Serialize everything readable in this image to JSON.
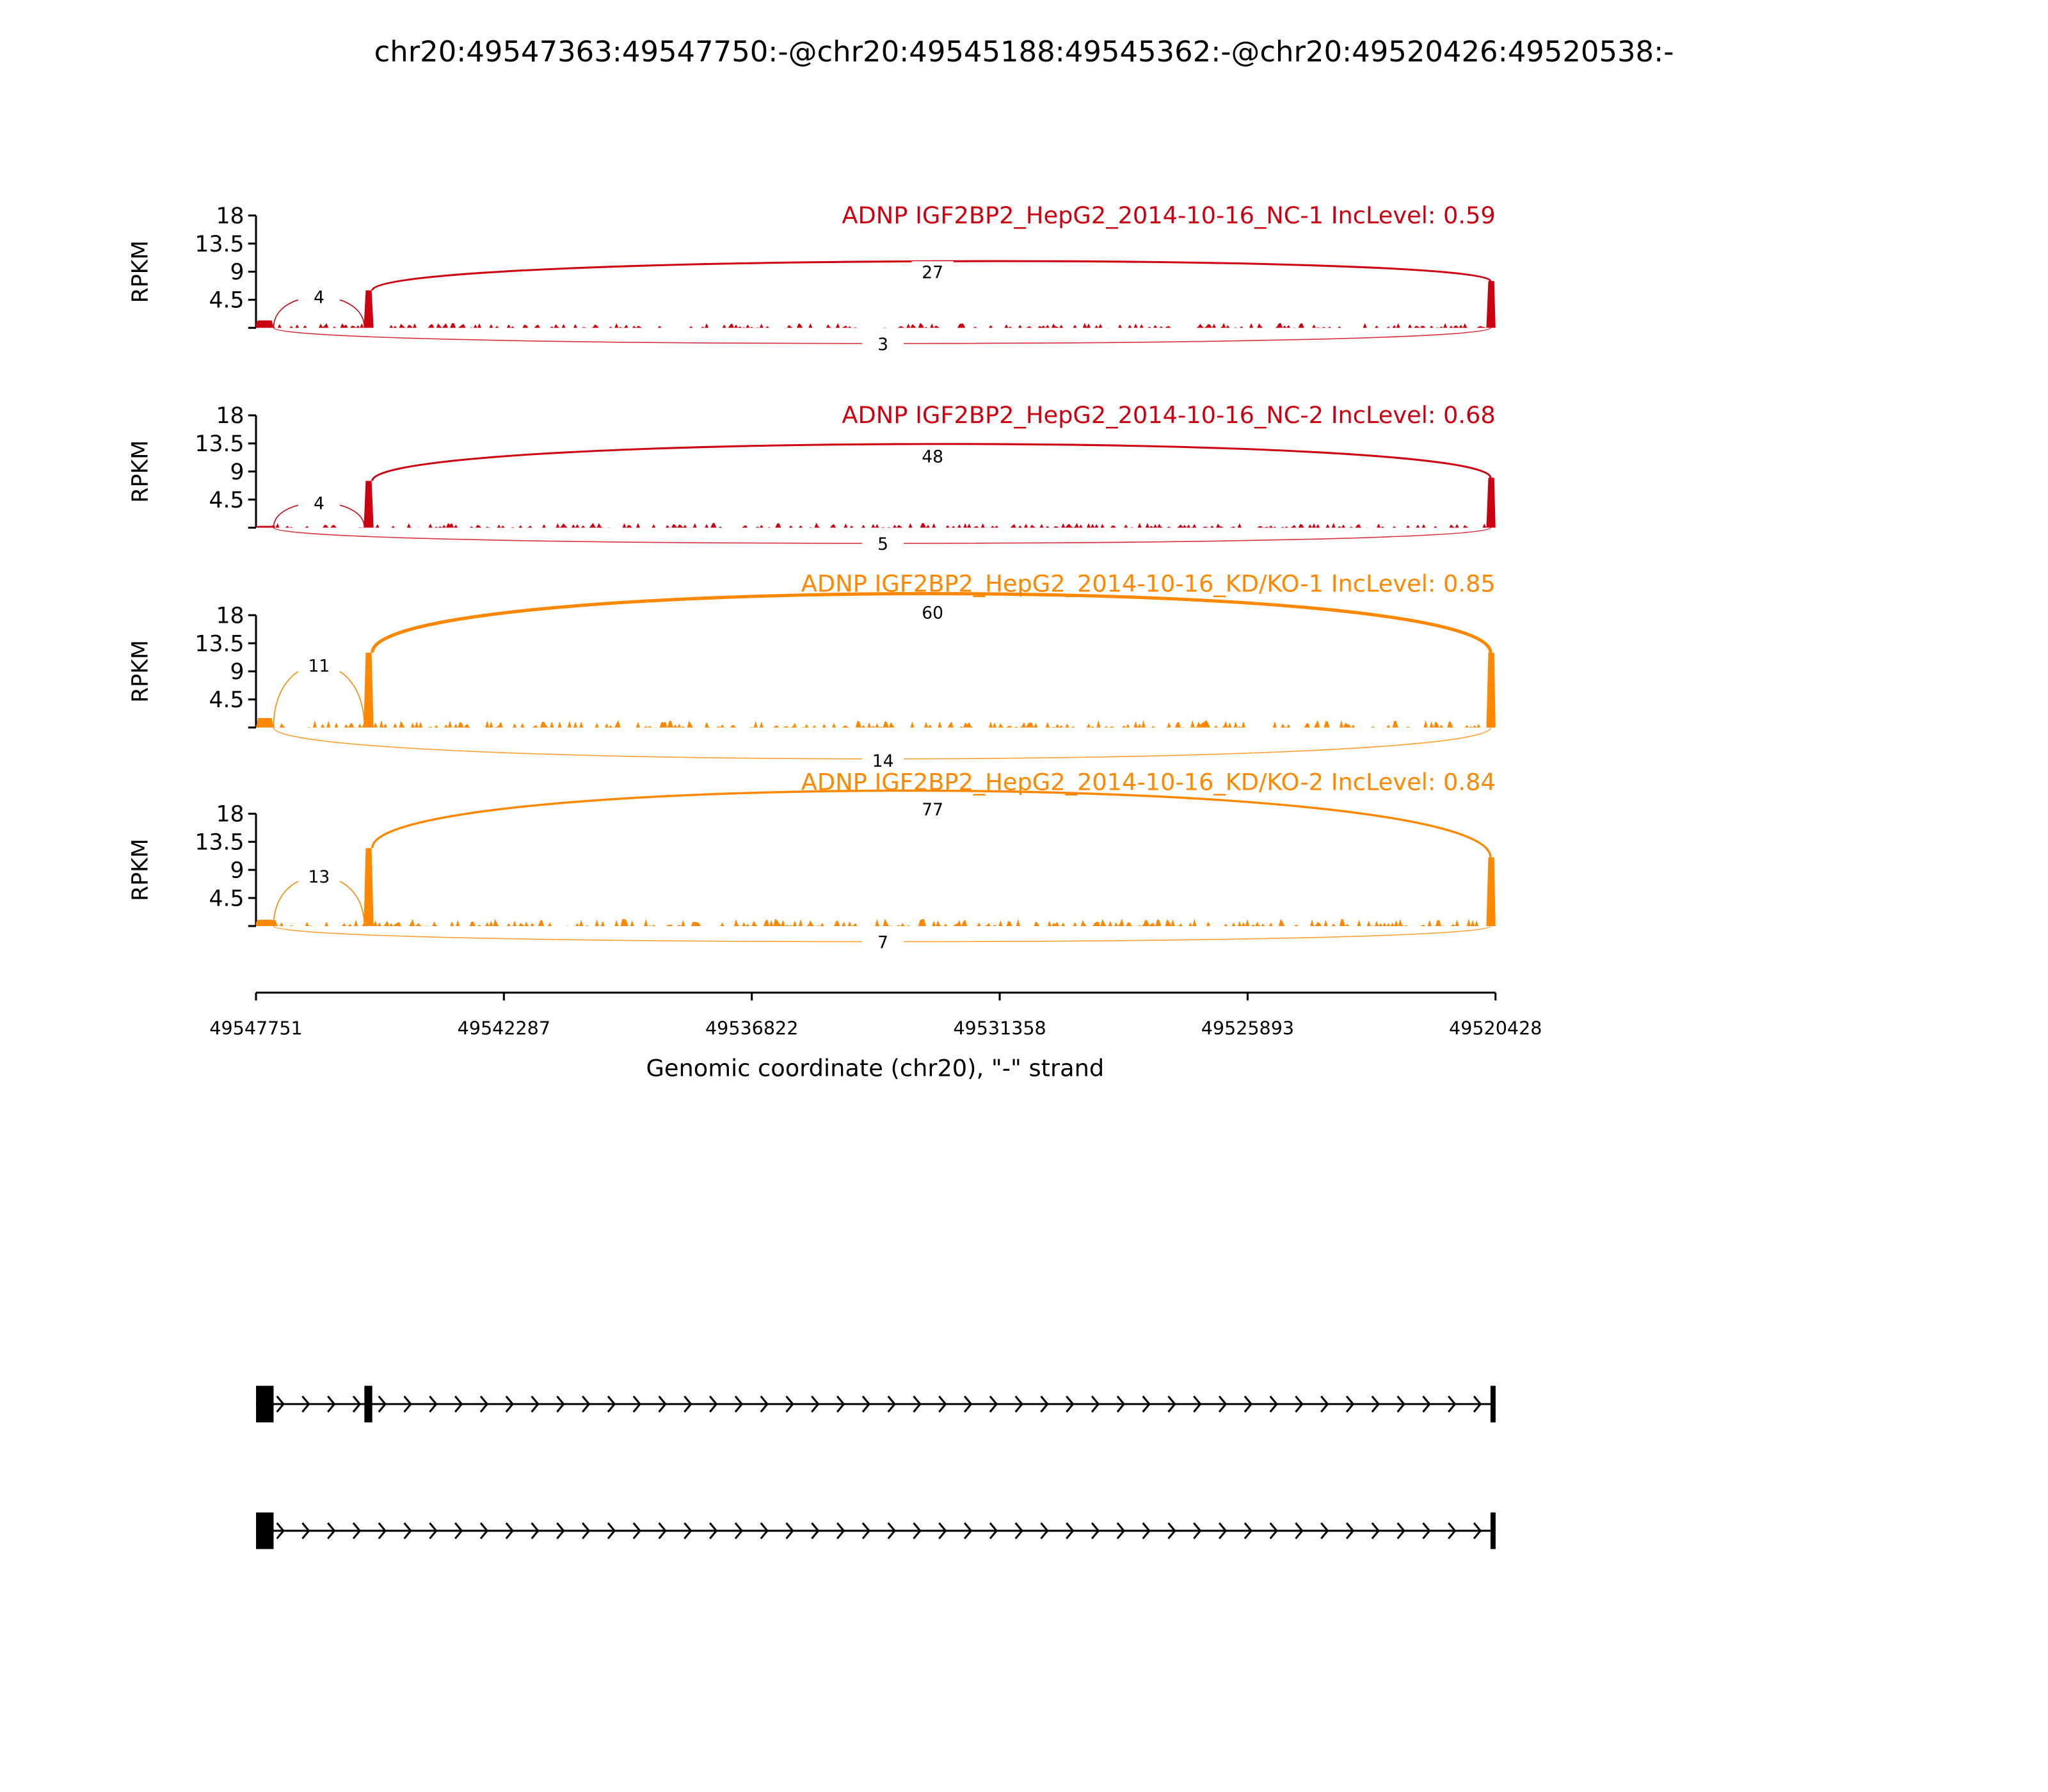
{
  "chart_data": {
    "type": "area",
    "title": "chr20:49547363:49547750:-@chr20:49545188:49545362:-@chr20:49520426:49520538:-",
    "xlabel": "Genomic coordinate (chr20), \"-\" strand",
    "xlim": [
      49547751,
      49520428
    ],
    "xticks": [
      "49547751",
      "49542287",
      "49536822",
      "49531358",
      "49525893",
      "49520428"
    ],
    "ylabel": "RPKM",
    "ylim": [
      0,
      18
    ],
    "yticks": [
      "18",
      "13.5",
      "9",
      "4.5"
    ],
    "exons": [
      [
        49547750,
        49547363
      ],
      [
        49545362,
        49545188
      ],
      [
        49520538,
        49520426
      ]
    ],
    "panels": [
      {
        "title": "ADNP IGF2BP2_HepG2_2014-10-16_NC-1 IncLevel: 0.59",
        "color": "#cc0011",
        "exon_rpkm": [
          1.2,
          6,
          7.5
        ],
        "junctions": {
          "upstream": "4",
          "downstream": "27",
          "skipping": "3"
        }
      },
      {
        "title": "ADNP IGF2BP2_HepG2_2014-10-16_NC-2 IncLevel: 0.68",
        "color": "#cc0011",
        "exon_rpkm": [
          0.3,
          7.5,
          8
        ],
        "junctions": {
          "upstream": "4",
          "downstream": "48",
          "skipping": "5"
        }
      },
      {
        "title": "ADNP IGF2BP2_HepG2_2014-10-16_KD/KO-1 IncLevel: 0.85",
        "color": "#ff8800",
        "exon_rpkm": [
          1.5,
          12,
          12
        ],
        "junctions": {
          "upstream": "11",
          "downstream": "60",
          "skipping": "14"
        }
      },
      {
        "title": "ADNP IGF2BP2_HepG2_2014-10-16_KD/KO-2 IncLevel: 0.84",
        "color": "#ff8800",
        "exon_rpkm": [
          1,
          12.5,
          11
        ],
        "junctions": {
          "upstream": "13",
          "downstream": "77",
          "skipping": "7"
        }
      }
    ],
    "transcripts": [
      {
        "exons": [
          [
            49547750,
            49547363
          ],
          [
            49545362,
            49545188
          ],
          [
            49520538,
            49520426
          ]
        ]
      },
      {
        "exons": [
          [
            49547750,
            49547363
          ],
          [
            49520538,
            49520426
          ]
        ]
      }
    ]
  }
}
